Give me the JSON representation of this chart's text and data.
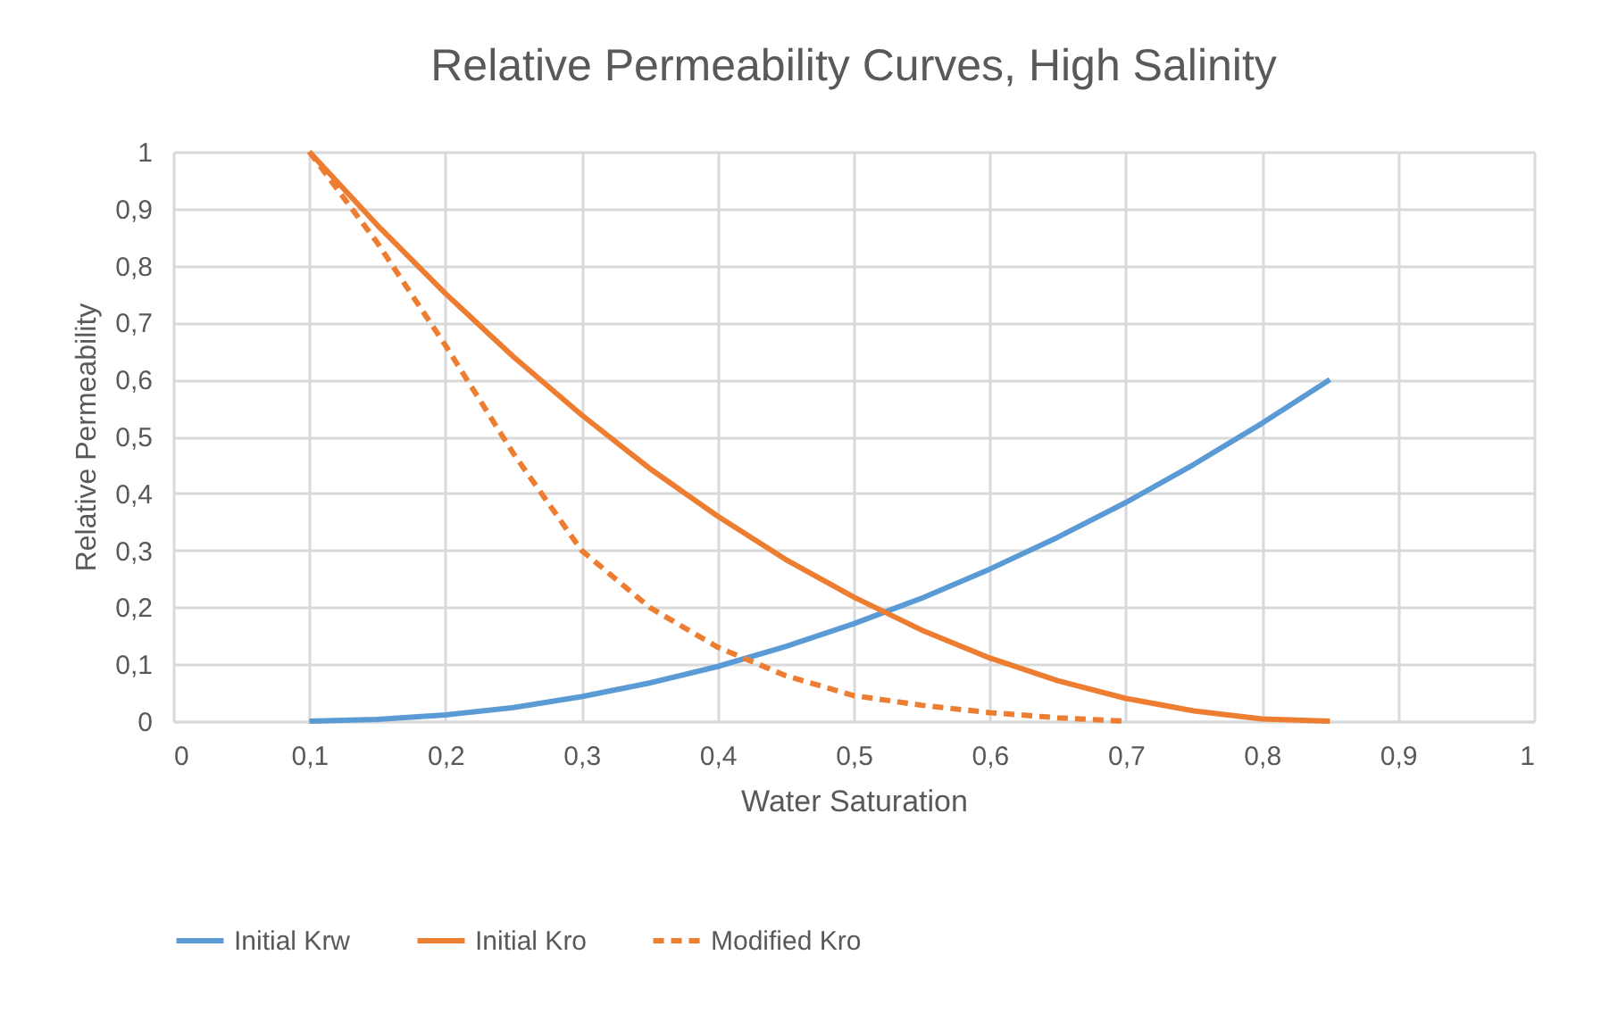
{
  "chart_data": {
    "type": "line",
    "title": "Relative Permeability Curves, High Salinity",
    "xlabel": "Water Saturation",
    "ylabel": "Relative Permeability",
    "x": [
      0.1,
      0.15,
      0.2,
      0.25,
      0.3,
      0.35,
      0.4,
      0.45,
      0.5,
      0.55,
      0.6,
      0.65,
      0.7,
      0.75,
      0.8,
      0.85
    ],
    "series": [
      {
        "name": "Initial Krw",
        "color": "#5b9bd5",
        "line_style": "solid",
        "values": [
          0,
          0.003,
          0.011,
          0.024,
          0.043,
          0.067,
          0.096,
          0.131,
          0.171,
          0.216,
          0.267,
          0.323,
          0.384,
          0.451,
          0.523,
          0.6
        ]
      },
      {
        "name": "Initial Kro",
        "color": "#ed7d31",
        "line_style": "solid",
        "values": [
          1,
          0.871,
          0.751,
          0.64,
          0.538,
          0.444,
          0.36,
          0.284,
          0.218,
          0.16,
          0.111,
          0.071,
          0.04,
          0.018,
          0.004,
          0
        ]
      },
      {
        "name": "Modified Kro",
        "color": "#ed7d31",
        "line_style": "dashed",
        "values": [
          1,
          0.84,
          0.66,
          0.47,
          0.3,
          0.2,
          0.13,
          0.08,
          0.045,
          0.028,
          0.015,
          0.006,
          0,
          null,
          null,
          null
        ]
      }
    ],
    "xlim": [
      0,
      1
    ],
    "ylim": [
      0,
      1
    ],
    "xticks": [
      {
        "value": 0,
        "label": "0"
      },
      {
        "value": 0.1,
        "label": "0,1"
      },
      {
        "value": 0.2,
        "label": "0,2"
      },
      {
        "value": 0.3,
        "label": "0,3"
      },
      {
        "value": 0.4,
        "label": "0,4"
      },
      {
        "value": 0.5,
        "label": "0,5"
      },
      {
        "value": 0.6,
        "label": "0,6"
      },
      {
        "value": 0.7,
        "label": "0,7"
      },
      {
        "value": 0.8,
        "label": "0,8"
      },
      {
        "value": 0.9,
        "label": "0,9"
      },
      {
        "value": 1,
        "label": "1"
      }
    ],
    "yticks": [
      {
        "value": 0,
        "label": "0"
      },
      {
        "value": 0.1,
        "label": "0,1"
      },
      {
        "value": 0.2,
        "label": "0,2"
      },
      {
        "value": 0.3,
        "label": "0,3"
      },
      {
        "value": 0.4,
        "label": "0,4"
      },
      {
        "value": 0.5,
        "label": "0,5"
      },
      {
        "value": 0.6,
        "label": "0,6"
      },
      {
        "value": 0.7,
        "label": "0,7"
      },
      {
        "value": 0.8,
        "label": "0,8"
      },
      {
        "value": 0.9,
        "label": "0,9"
      },
      {
        "value": 1,
        "label": "1"
      }
    ],
    "grid": true,
    "legend": "bottom",
    "marker": "none"
  }
}
